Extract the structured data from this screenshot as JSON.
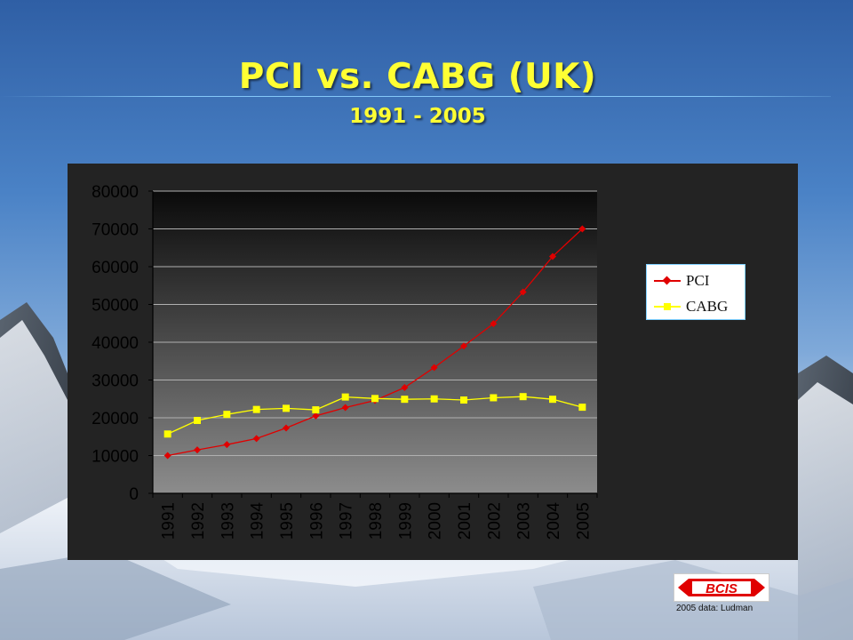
{
  "header": {
    "title": "PCI vs. CABG (UK)",
    "subtitle": "1991 - 2005"
  },
  "colors": {
    "title": "#ffff33",
    "pci": "#e00000",
    "cabg": "#ffff00",
    "plot_top": "#0a0a0a",
    "plot_bottom": "#8c8c8c"
  },
  "chart_data": {
    "type": "line",
    "title": "",
    "xlabel": "",
    "ylabel": "",
    "categories": [
      "1991",
      "1992",
      "1993",
      "1994",
      "1995",
      "1996",
      "1997",
      "1998",
      "1999",
      "2000",
      "2001",
      "2002",
      "2003",
      "2004",
      "2005"
    ],
    "ylim": [
      0,
      80000
    ],
    "yticks": [
      0,
      10000,
      20000,
      30000,
      40000,
      50000,
      60000,
      70000,
      80000
    ],
    "grid": "horizontal",
    "legend_position": "right",
    "series": [
      {
        "name": "PCI",
        "color": "#e00000",
        "marker": "diamond",
        "values": [
          10000,
          11500,
          12900,
          14500,
          17300,
          20500,
          22700,
          24600,
          28000,
          33300,
          39000,
          44900,
          53300,
          62700,
          70000
        ]
      },
      {
        "name": "CABG",
        "color": "#ffff00",
        "marker": "square",
        "values": [
          15700,
          19300,
          20900,
          22200,
          22500,
          22100,
          25500,
          25100,
          24900,
          25000,
          24700,
          25300,
          25600,
          24900,
          22800
        ]
      }
    ]
  },
  "logo": {
    "text": "BCIS"
  },
  "footnote": "2005 data: Ludman"
}
